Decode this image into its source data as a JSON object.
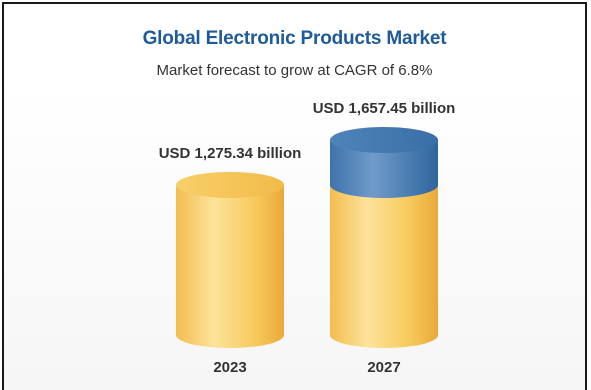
{
  "colors": {
    "title": "#1f5b9b",
    "bar_light": "#fde39a",
    "bar_mid": "#f7c85a",
    "bar_dark": "#e9a93a",
    "growth_light": "#6f9bc9",
    "growth_dark": "#2f659e"
  },
  "chart_data": {
    "type": "bar",
    "title": "Global Electronic Products Market",
    "subtitle": "Market forecast to grow at CAGR of 6.8%",
    "categories": [
      "2023",
      "2027"
    ],
    "values": [
      1275.34,
      1657.45
    ],
    "value_labels": [
      "USD 1,275.34 billion",
      "USD 1,657.45 billion"
    ],
    "unit": "USD billion",
    "ylim": [
      0,
      1657.45
    ],
    "grid": false,
    "legend": "none"
  }
}
